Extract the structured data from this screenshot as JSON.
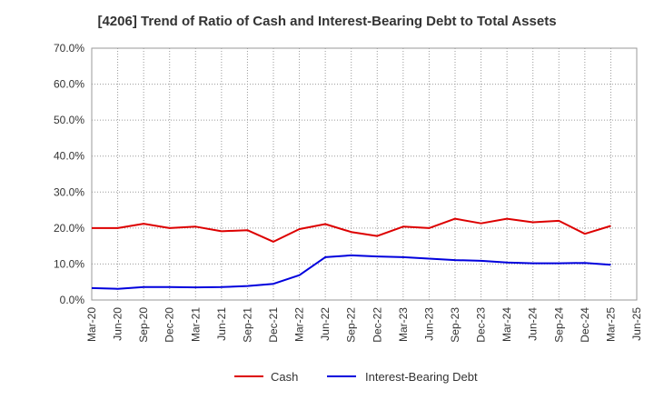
{
  "chart_data": {
    "type": "line",
    "title": "[4206]  Trend of Ratio of Cash and Interest-Bearing Debt to Total Assets",
    "xlabel": "",
    "ylabel": "",
    "ylim": [
      0,
      70
    ],
    "y_ticks": [
      "0.0%",
      "10.0%",
      "20.0%",
      "30.0%",
      "40.0%",
      "50.0%",
      "60.0%",
      "70.0%"
    ],
    "categories": [
      "Mar-20",
      "Jun-20",
      "Sep-20",
      "Dec-20",
      "Mar-21",
      "Jun-21",
      "Sep-21",
      "Dec-21",
      "Mar-22",
      "Jun-22",
      "Sep-22",
      "Dec-22",
      "Mar-23",
      "Jun-23",
      "Sep-23",
      "Dec-23",
      "Mar-24",
      "Jun-24",
      "Sep-24",
      "Dec-24",
      "Mar-25",
      "Jun-25"
    ],
    "series": [
      {
        "name": "Cash",
        "color": "#dd0000",
        "values": [
          20.0,
          20.0,
          21.2,
          20.0,
          20.4,
          19.1,
          19.4,
          16.2,
          19.7,
          21.1,
          18.9,
          17.8,
          20.4,
          20.0,
          22.6,
          21.3,
          22.6,
          21.6,
          22.0,
          18.4,
          20.6,
          null
        ]
      },
      {
        "name": "Interest-Bearing Debt",
        "color": "#0000dd",
        "values": [
          3.3,
          3.1,
          3.6,
          3.6,
          3.5,
          3.6,
          3.9,
          4.5,
          6.9,
          11.9,
          12.4,
          12.1,
          11.9,
          11.5,
          11.1,
          10.9,
          10.4,
          10.2,
          10.2,
          10.3,
          9.8,
          null
        ]
      }
    ],
    "legend_position": "bottom-center",
    "grid": true
  }
}
